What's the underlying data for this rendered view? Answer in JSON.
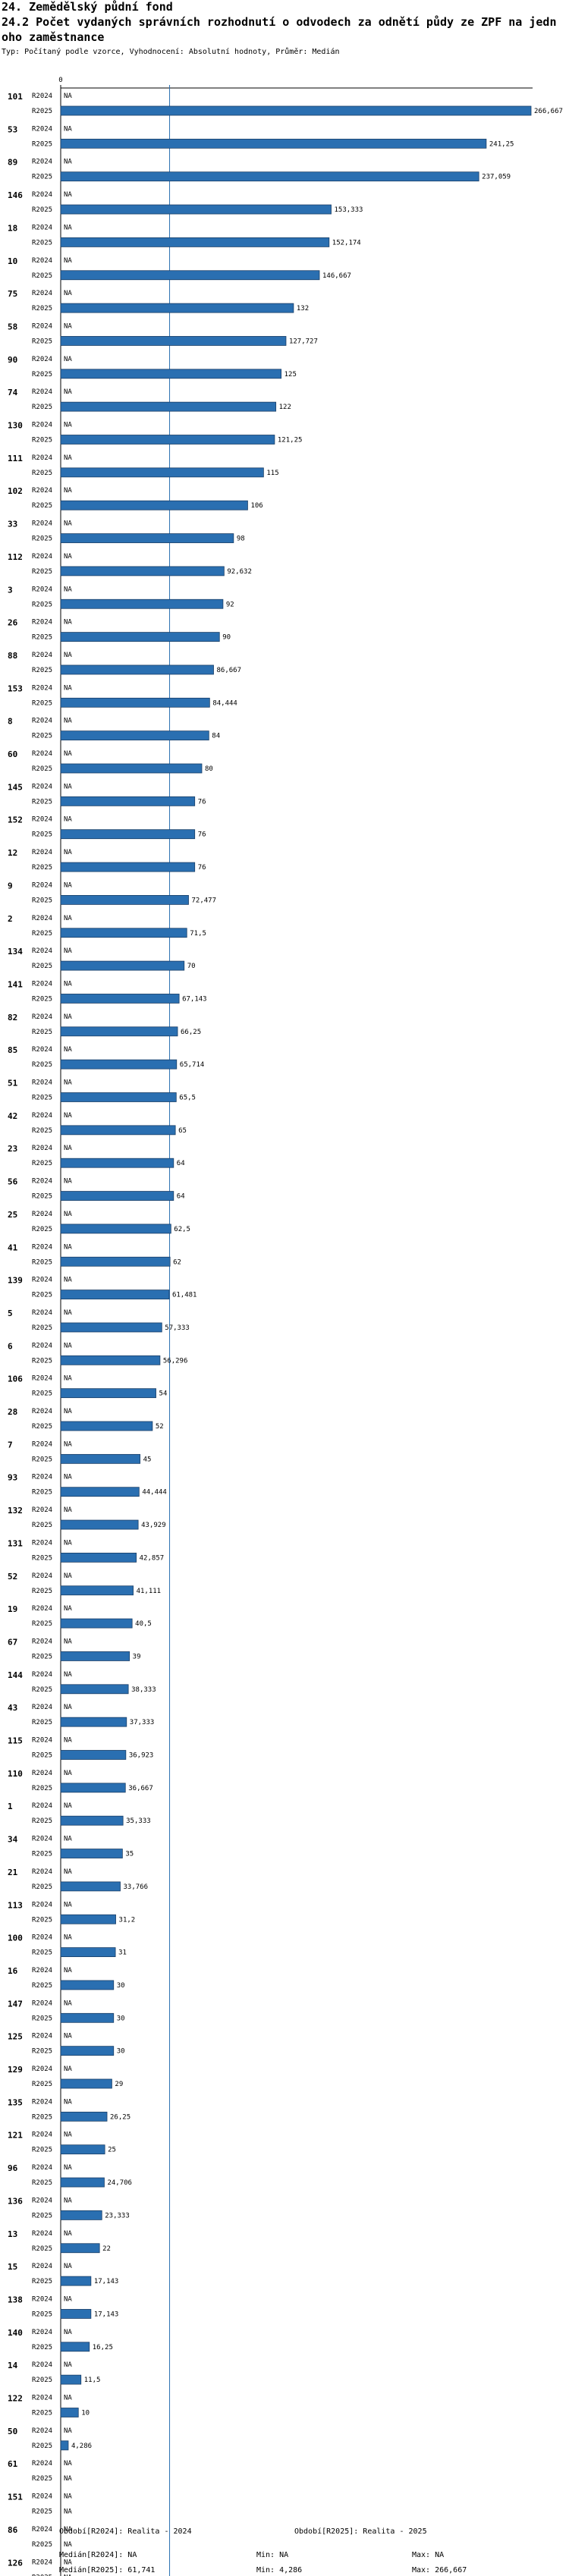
{
  "header": {
    "title_line1": "24. Zemědělský půdní fond",
    "title_line2": "24.2 Počet vydaných správních rozhodnutí o odvodech za odnětí půdy ze ZPF na jedn",
    "title_line3": "oho zaměstnance",
    "subtitle": "Typ: Počítaný podle vzorce, Vyhodnocení: Absolutní hodnoty, Průměr: Medián"
  },
  "colors": {
    "bar": "#2a6fb1",
    "bar_stroke": "#1a3e66",
    "median_line": "#2a6fb1",
    "axis": "#000000"
  },
  "chart_data": {
    "type": "bar",
    "orientation": "horizontal",
    "title": "24.2 Počet vydaných správních rozhodnutí o odvodech za odnětí půdy ze ZPF na jednoho zaměstnance",
    "axis_zero_label": "0",
    "xlim": [
      0,
      266.667
    ],
    "median": 61.741,
    "series_names": [
      "R2024",
      "R2025"
    ],
    "na_label": "NA",
    "groups": [
      {
        "id": "101",
        "r2024": "NA",
        "r2025": 266.667,
        "label": "266,667"
      },
      {
        "id": "53",
        "r2024": "NA",
        "r2025": 241.25,
        "label": "241,25"
      },
      {
        "id": "89",
        "r2024": "NA",
        "r2025": 237.059,
        "label": "237,059"
      },
      {
        "id": "146",
        "r2024": "NA",
        "r2025": 153.333,
        "label": "153,333"
      },
      {
        "id": "18",
        "r2024": "NA",
        "r2025": 152.174,
        "label": "152,174"
      },
      {
        "id": "10",
        "r2024": "NA",
        "r2025": 146.667,
        "label": "146,667"
      },
      {
        "id": "75",
        "r2024": "NA",
        "r2025": 132,
        "label": "132"
      },
      {
        "id": "58",
        "r2024": "NA",
        "r2025": 127.727,
        "label": "127,727"
      },
      {
        "id": "90",
        "r2024": "NA",
        "r2025": 125,
        "label": "125"
      },
      {
        "id": "74",
        "r2024": "NA",
        "r2025": 122,
        "label": "122"
      },
      {
        "id": "130",
        "r2024": "NA",
        "r2025": 121.25,
        "label": "121,25"
      },
      {
        "id": "111",
        "r2024": "NA",
        "r2025": 115,
        "label": "115"
      },
      {
        "id": "102",
        "r2024": "NA",
        "r2025": 106,
        "label": "106"
      },
      {
        "id": "33",
        "r2024": "NA",
        "r2025": 98,
        "label": "98"
      },
      {
        "id": "112",
        "r2024": "NA",
        "r2025": 92.632,
        "label": "92,632"
      },
      {
        "id": "3",
        "r2024": "NA",
        "r2025": 92,
        "label": "92"
      },
      {
        "id": "26",
        "r2024": "NA",
        "r2025": 90,
        "label": "90"
      },
      {
        "id": "88",
        "r2024": "NA",
        "r2025": 86.667,
        "label": "86,667"
      },
      {
        "id": "153",
        "r2024": "NA",
        "r2025": 84.444,
        "label": "84,444"
      },
      {
        "id": "8",
        "r2024": "NA",
        "r2025": 84,
        "label": "84"
      },
      {
        "id": "60",
        "r2024": "NA",
        "r2025": 80,
        "label": "80"
      },
      {
        "id": "145",
        "r2024": "NA",
        "r2025": 76,
        "label": "76"
      },
      {
        "id": "152",
        "r2024": "NA",
        "r2025": 76,
        "label": "76"
      },
      {
        "id": "12",
        "r2024": "NA",
        "r2025": 76,
        "label": "76"
      },
      {
        "id": "9",
        "r2024": "NA",
        "r2025": 72.477,
        "label": "72,477"
      },
      {
        "id": "2",
        "r2024": "NA",
        "r2025": 71.5,
        "label": "71,5"
      },
      {
        "id": "134",
        "r2024": "NA",
        "r2025": 70,
        "label": "70"
      },
      {
        "id": "141",
        "r2024": "NA",
        "r2025": 67.143,
        "label": "67,143"
      },
      {
        "id": "82",
        "r2024": "NA",
        "r2025": 66.25,
        "label": "66,25"
      },
      {
        "id": "85",
        "r2024": "NA",
        "r2025": 65.714,
        "label": "65,714"
      },
      {
        "id": "51",
        "r2024": "NA",
        "r2025": 65.5,
        "label": "65,5"
      },
      {
        "id": "42",
        "r2024": "NA",
        "r2025": 65,
        "label": "65"
      },
      {
        "id": "23",
        "r2024": "NA",
        "r2025": 64,
        "label": "64"
      },
      {
        "id": "56",
        "r2024": "NA",
        "r2025": 64,
        "label": "64"
      },
      {
        "id": "25",
        "r2024": "NA",
        "r2025": 62.5,
        "label": "62,5"
      },
      {
        "id": "41",
        "r2024": "NA",
        "r2025": 62,
        "label": "62"
      },
      {
        "id": "139",
        "r2024": "NA",
        "r2025": 61.481,
        "label": "61,481"
      },
      {
        "id": "5",
        "r2024": "NA",
        "r2025": 57.333,
        "label": "57,333"
      },
      {
        "id": "6",
        "r2024": "NA",
        "r2025": 56.296,
        "label": "56,296"
      },
      {
        "id": "106",
        "r2024": "NA",
        "r2025": 54,
        "label": "54"
      },
      {
        "id": "28",
        "r2024": "NA",
        "r2025": 52,
        "label": "52"
      },
      {
        "id": "7",
        "r2024": "NA",
        "r2025": 45,
        "label": "45"
      },
      {
        "id": "93",
        "r2024": "NA",
        "r2025": 44.444,
        "label": "44,444"
      },
      {
        "id": "132",
        "r2024": "NA",
        "r2025": 43.929,
        "label": "43,929"
      },
      {
        "id": "131",
        "r2024": "NA",
        "r2025": 42.857,
        "label": "42,857"
      },
      {
        "id": "52",
        "r2024": "NA",
        "r2025": 41.111,
        "label": "41,111"
      },
      {
        "id": "19",
        "r2024": "NA",
        "r2025": 40.5,
        "label": "40,5"
      },
      {
        "id": "67",
        "r2024": "NA",
        "r2025": 39,
        "label": "39"
      },
      {
        "id": "144",
        "r2024": "NA",
        "r2025": 38.333,
        "label": "38,333"
      },
      {
        "id": "43",
        "r2024": "NA",
        "r2025": 37.333,
        "label": "37,333"
      },
      {
        "id": "115",
        "r2024": "NA",
        "r2025": 36.923,
        "label": "36,923"
      },
      {
        "id": "110",
        "r2024": "NA",
        "r2025": 36.667,
        "label": "36,667"
      },
      {
        "id": "1",
        "r2024": "NA",
        "r2025": 35.333,
        "label": "35,333"
      },
      {
        "id": "34",
        "r2024": "NA",
        "r2025": 35,
        "label": "35"
      },
      {
        "id": "21",
        "r2024": "NA",
        "r2025": 33.766,
        "label": "33,766"
      },
      {
        "id": "113",
        "r2024": "NA",
        "r2025": 31.2,
        "label": "31,2"
      },
      {
        "id": "100",
        "r2024": "NA",
        "r2025": 31,
        "label": "31"
      },
      {
        "id": "16",
        "r2024": "NA",
        "r2025": 30,
        "label": "30"
      },
      {
        "id": "147",
        "r2024": "NA",
        "r2025": 30,
        "label": "30"
      },
      {
        "id": "125",
        "r2024": "NA",
        "r2025": 30,
        "label": "30"
      },
      {
        "id": "129",
        "r2024": "NA",
        "r2025": 29,
        "label": "29"
      },
      {
        "id": "135",
        "r2024": "NA",
        "r2025": 26.25,
        "label": "26,25"
      },
      {
        "id": "121",
        "r2024": "NA",
        "r2025": 25,
        "label": "25"
      },
      {
        "id": "96",
        "r2024": "NA",
        "r2025": 24.706,
        "label": "24,706"
      },
      {
        "id": "136",
        "r2024": "NA",
        "r2025": 23.333,
        "label": "23,333"
      },
      {
        "id": "13",
        "r2024": "NA",
        "r2025": 22,
        "label": "22"
      },
      {
        "id": "15",
        "r2024": "NA",
        "r2025": 17.143,
        "label": "17,143"
      },
      {
        "id": "138",
        "r2024": "NA",
        "r2025": 17.143,
        "label": "17,143"
      },
      {
        "id": "140",
        "r2024": "NA",
        "r2025": 16.25,
        "label": "16,25"
      },
      {
        "id": "14",
        "r2024": "NA",
        "r2025": 11.5,
        "label": "11,5"
      },
      {
        "id": "122",
        "r2024": "NA",
        "r2025": 10,
        "label": "10"
      },
      {
        "id": "50",
        "r2024": "NA",
        "r2025": 4.286,
        "label": "4,286"
      },
      {
        "id": "61",
        "r2024": "NA",
        "r2025": "NA",
        "label": "NA"
      },
      {
        "id": "151",
        "r2024": "NA",
        "r2025": "NA",
        "label": "NA"
      },
      {
        "id": "86",
        "r2024": "NA",
        "r2025": "NA",
        "label": "NA"
      },
      {
        "id": "126",
        "r2024": "NA",
        "r2025": "NA",
        "label": "NA"
      }
    ]
  },
  "footer": {
    "obdobi_2024": "Období[R2024]: Realita - 2024",
    "obdobi_2025": "Období[R2025]: Realita - 2025",
    "median_2024": "Medián[R2024]: NA",
    "min_2024": "Min: NA",
    "max_2024": "Max: NA",
    "median_2025": "Medián[R2025]: 61,741",
    "min_2025": "Min: 4,286",
    "max_2025": "Max: 266,667"
  }
}
